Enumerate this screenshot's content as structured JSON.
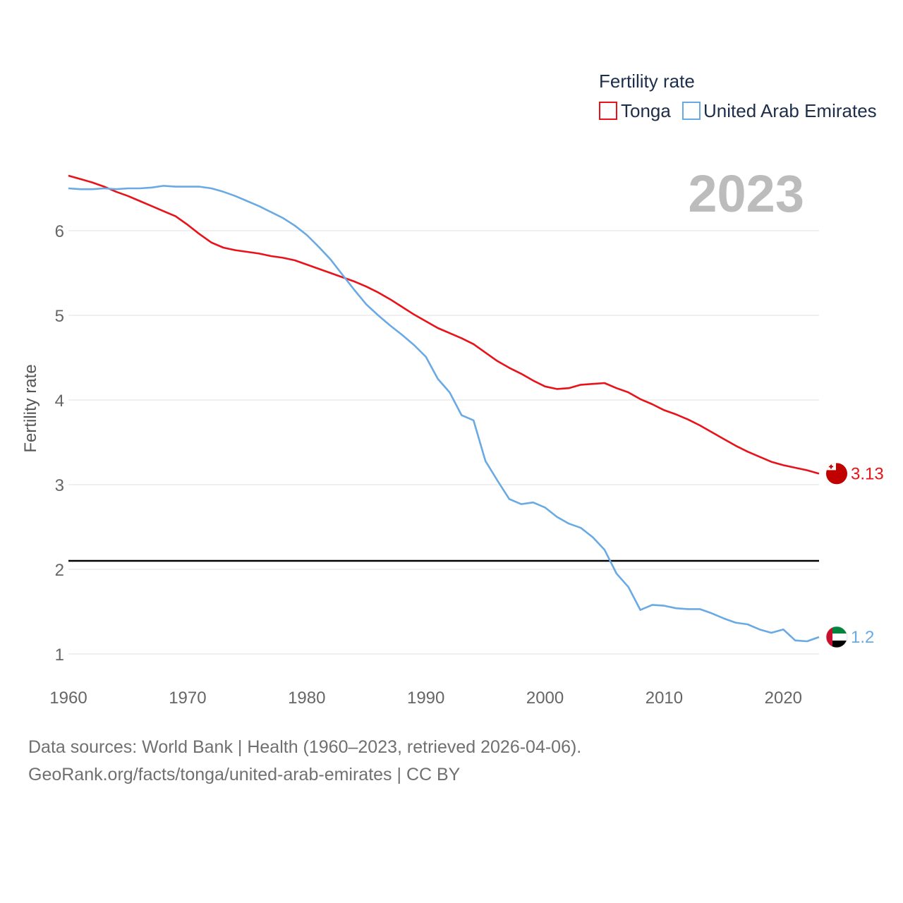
{
  "chart_data": {
    "type": "line",
    "title": "Fertility rate",
    "ylabel": "Fertility rate",
    "xlabel": "",
    "year_label": "2023",
    "xlim": [
      1960,
      2023
    ],
    "ylim": [
      0.8,
      7.0
    ],
    "x_ticks": [
      1960,
      1970,
      1980,
      1990,
      2000,
      2010,
      2020
    ],
    "y_ticks": [
      1,
      2,
      3,
      4,
      5,
      6
    ],
    "reference_line": 2.1,
    "years": [
      1960,
      1961,
      1962,
      1963,
      1964,
      1965,
      1966,
      1967,
      1968,
      1969,
      1970,
      1971,
      1972,
      1973,
      1974,
      1975,
      1976,
      1977,
      1978,
      1979,
      1980,
      1981,
      1982,
      1983,
      1984,
      1985,
      1986,
      1987,
      1988,
      1989,
      1990,
      1991,
      1992,
      1993,
      1994,
      1995,
      1996,
      1997,
      1998,
      1999,
      2000,
      2001,
      2002,
      2003,
      2004,
      2005,
      2006,
      2007,
      2008,
      2009,
      2010,
      2011,
      2012,
      2013,
      2014,
      2015,
      2016,
      2017,
      2018,
      2019,
      2020,
      2021,
      2022,
      2023
    ],
    "series": [
      {
        "name": "Tonga",
        "color": "#e8131a",
        "end_label": "3.13",
        "values": [
          6.65,
          6.61,
          6.57,
          6.52,
          6.46,
          6.41,
          6.35,
          6.29,
          6.23,
          6.17,
          6.07,
          5.96,
          5.86,
          5.8,
          5.77,
          5.75,
          5.73,
          5.7,
          5.68,
          5.65,
          5.6,
          5.55,
          5.5,
          5.45,
          5.4,
          5.34,
          5.27,
          5.19,
          5.1,
          5.01,
          4.93,
          4.85,
          4.79,
          4.73,
          4.66,
          4.56,
          4.46,
          4.38,
          4.31,
          4.23,
          4.16,
          4.13,
          4.14,
          4.18,
          4.19,
          4.2,
          4.14,
          4.09,
          4.01,
          3.95,
          3.88,
          3.83,
          3.77,
          3.7,
          3.62,
          3.54,
          3.46,
          3.39,
          3.33,
          3.27,
          3.23,
          3.2,
          3.17,
          3.13
        ]
      },
      {
        "name": "United Arab Emirates",
        "color": "#6aaae4",
        "end_label": "1.2",
        "values": [
          6.5,
          6.49,
          6.49,
          6.5,
          6.49,
          6.5,
          6.5,
          6.51,
          6.53,
          6.52,
          6.52,
          6.52,
          6.5,
          6.46,
          6.41,
          6.35,
          6.29,
          6.22,
          6.15,
          6.06,
          5.95,
          5.81,
          5.66,
          5.48,
          5.3,
          5.13,
          5.0,
          4.88,
          4.77,
          4.65,
          4.51,
          4.25,
          4.09,
          3.82,
          3.76,
          3.28,
          3.05,
          2.83,
          2.77,
          2.79,
          2.73,
          2.62,
          2.54,
          2.49,
          2.38,
          2.23,
          1.95,
          1.79,
          1.52,
          1.58,
          1.57,
          1.54,
          1.53,
          1.53,
          1.48,
          1.42,
          1.37,
          1.35,
          1.29,
          1.25,
          1.29,
          1.16,
          1.15,
          1.2
        ]
      }
    ]
  },
  "footer": {
    "line1": "Data sources: World Bank | Health (1960–2023, retrieved 2026-04-06).",
    "line2": "GeoRank.org/facts/tonga/united-arab-emirates | CC BY"
  }
}
